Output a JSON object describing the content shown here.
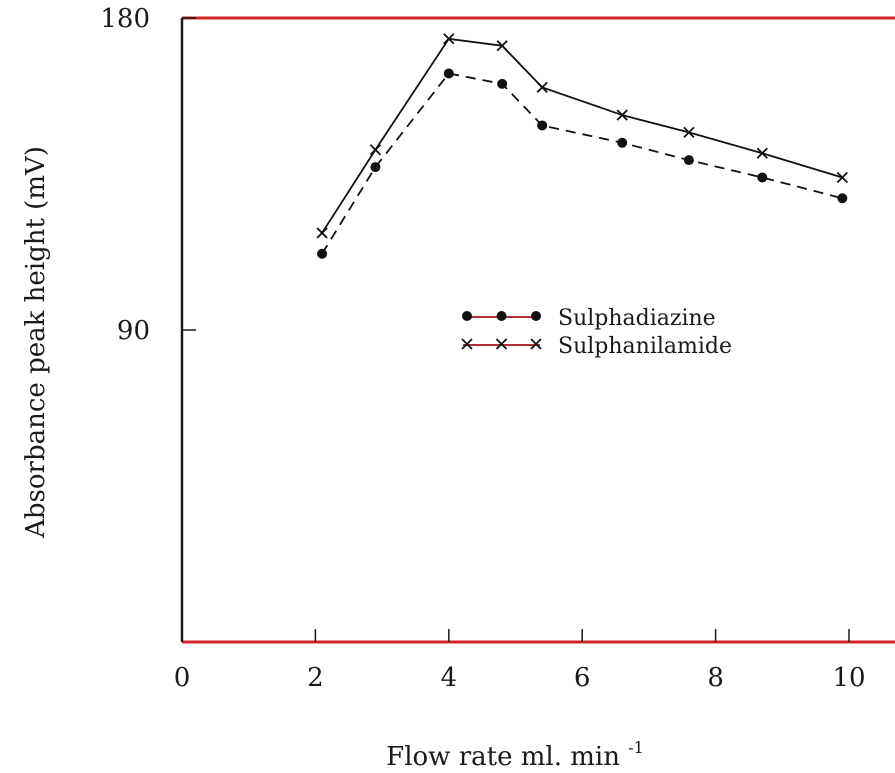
{
  "chart_data": {
    "type": "line",
    "title": "",
    "xlabel": "Flow rate ml. min",
    "xlabel_superscript": "-1",
    "ylabel": "Absorbance peak height (mV)",
    "xlim": [
      0,
      10
    ],
    "ylim": [
      0,
      180
    ],
    "x_ticks": [
      0,
      2,
      4,
      6,
      8,
      10
    ],
    "y_ticks": [
      90,
      180
    ],
    "grid": false,
    "legend_position": "center",
    "series": [
      {
        "name": "Sulphadiazine",
        "line_style": "dashed",
        "marker": "dot",
        "x": [
          2.1,
          2.9,
          4.0,
          4.8,
          5.4,
          6.6,
          7.6,
          8.7,
          9.9
        ],
        "y": [
          112,
          137,
          164,
          161,
          149,
          144,
          139,
          134,
          128
        ]
      },
      {
        "name": "Sulphanilamide",
        "line_style": "solid",
        "marker": "x",
        "x": [
          2.1,
          2.9,
          4.0,
          4.8,
          5.4,
          6.6,
          7.6,
          8.7,
          9.9
        ],
        "y": [
          118,
          142,
          174,
          172,
          160,
          152,
          147,
          141,
          134
        ]
      }
    ],
    "colors": {
      "axis": "#1a1a1a",
      "frame_top": "#d0242a",
      "frame_bottom": "#d0242a",
      "line": "#111111"
    }
  }
}
